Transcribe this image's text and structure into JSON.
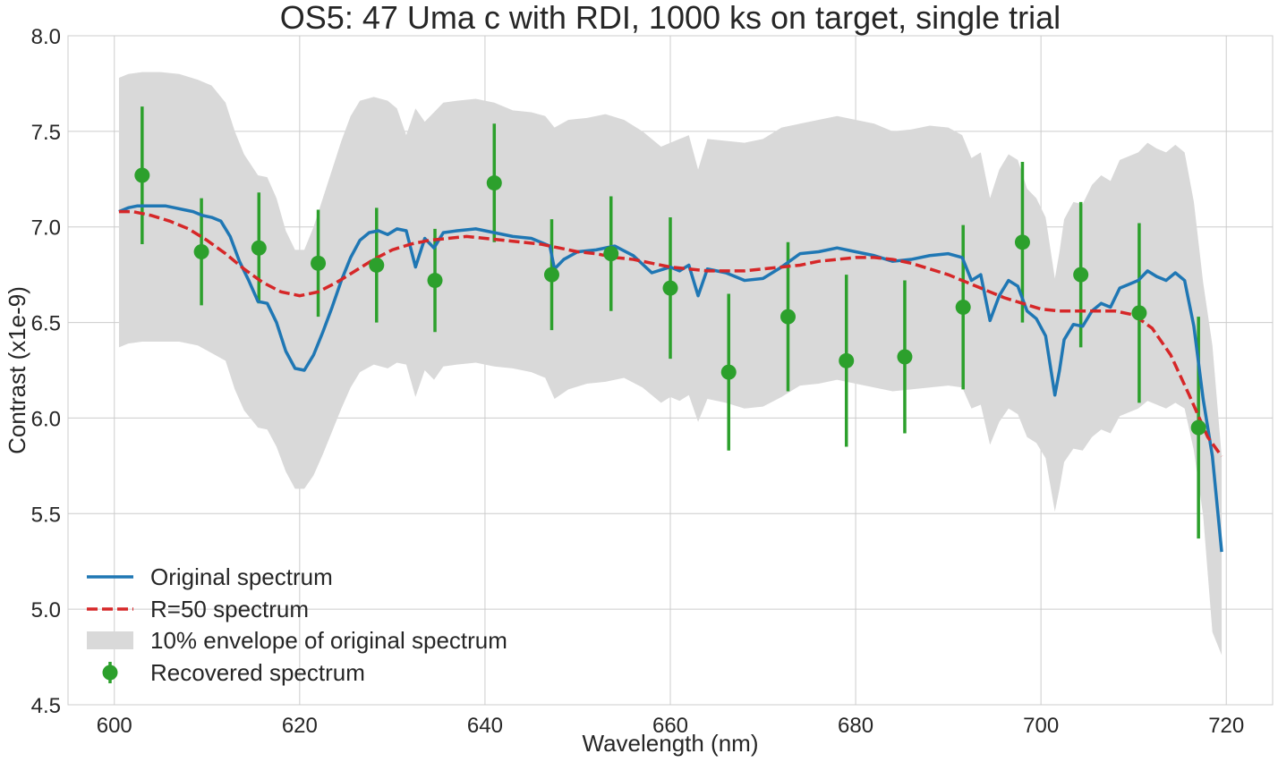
{
  "chart_data": {
    "type": "line",
    "title": "OS5: 47 Uma c with RDI, 1000 ks on target, single trial",
    "xlabel": "Wavelength (nm)",
    "ylabel": "Contrast (x1e-9)",
    "xlim": [
      595,
      725
    ],
    "ylim": [
      4.5,
      8.0
    ],
    "xticks": [
      600,
      620,
      640,
      660,
      680,
      700,
      720
    ],
    "xtick_labels": [
      "600",
      "620",
      "640",
      "660",
      "680",
      "700",
      "720"
    ],
    "yticks": [
      4.5,
      5.0,
      5.5,
      6.0,
      6.5,
      7.0,
      7.5,
      8.0
    ],
    "ytick_labels": [
      "4.5",
      "5.0",
      "5.5",
      "6.0",
      "6.5",
      "7.0",
      "7.5",
      "8.0"
    ],
    "grid": true,
    "legend_position": "lower-left",
    "colors": {
      "original": "#1f77b4",
      "r50": "#d62728",
      "envelope": "#d9d9d9",
      "recovered": "#2ca02c",
      "grid": "#cccccc",
      "text": "#262626"
    },
    "legend": [
      {
        "key": "original",
        "label": "Original spectrum",
        "style": "line"
      },
      {
        "key": "r50",
        "label": "R=50 spectrum",
        "style": "dashed"
      },
      {
        "key": "envelope",
        "label": "10% envelope of original spectrum",
        "style": "fill"
      },
      {
        "key": "recovered",
        "label": "Recovered spectrum",
        "style": "errorbar"
      }
    ],
    "series": [
      {
        "key": "original",
        "x": [
          600.5,
          601.5,
          602.5,
          603.5,
          604.5,
          605.5,
          606.5,
          607.5,
          608.5,
          609.5,
          610.5,
          611.5,
          612.5,
          613.5,
          614.5,
          615.5,
          616.5,
          617.5,
          618.5,
          619.5,
          620.5,
          621.5,
          622.5,
          623.5,
          624.5,
          625.5,
          626.5,
          627.5,
          628.5,
          629.5,
          630.5,
          631.5,
          632.5,
          633.5,
          634.5,
          635.5,
          637.0,
          639.0,
          641.0,
          643.0,
          645.0,
          647.0,
          647.5,
          648.5,
          650.0,
          652.0,
          654.0,
          656.0,
          658.0,
          660.0,
          661.0,
          662.0,
          663.0,
          664.0,
          666.0,
          668.0,
          670.0,
          672.0,
          674.0,
          676.0,
          678.0,
          680.0,
          682.0,
          684.0,
          686.0,
          688.0,
          690.0,
          691.5,
          692.5,
          693.5,
          694.5,
          695.5,
          696.5,
          697.5,
          698.5,
          699.5,
          700.5,
          701.5,
          702.0,
          702.5,
          703.5,
          704.5,
          705.5,
          706.5,
          707.5,
          708.5,
          709.5,
          710.5,
          711.5,
          712.5,
          713.5,
          714.5,
          715.5,
          716.5,
          717.5,
          718.5,
          719.5
        ],
        "y": [
          7.08,
          7.1,
          7.11,
          7.11,
          7.11,
          7.11,
          7.1,
          7.09,
          7.08,
          7.06,
          7.05,
          7.03,
          6.95,
          6.82,
          6.72,
          6.61,
          6.6,
          6.5,
          6.35,
          6.26,
          6.25,
          6.33,
          6.45,
          6.58,
          6.72,
          6.84,
          6.93,
          6.97,
          6.98,
          6.96,
          6.99,
          6.98,
          6.79,
          6.94,
          6.89,
          6.97,
          6.98,
          6.99,
          6.97,
          6.95,
          6.94,
          6.9,
          6.78,
          6.83,
          6.87,
          6.88,
          6.9,
          6.85,
          6.76,
          6.79,
          6.77,
          6.8,
          6.64,
          6.78,
          6.76,
          6.72,
          6.73,
          6.79,
          6.86,
          6.87,
          6.89,
          6.87,
          6.85,
          6.82,
          6.83,
          6.85,
          6.86,
          6.84,
          6.72,
          6.75,
          6.51,
          6.64,
          6.72,
          6.69,
          6.56,
          6.52,
          6.43,
          6.12,
          6.25,
          6.41,
          6.49,
          6.48,
          6.56,
          6.6,
          6.58,
          6.68,
          6.7,
          6.72,
          6.77,
          6.74,
          6.72,
          6.76,
          6.72,
          6.48,
          6.1,
          5.8,
          5.3
        ]
      },
      {
        "key": "r50",
        "x": [
          600.5,
          602,
          604,
          606,
          608,
          610,
          612,
          614,
          616,
          618,
          620,
          622,
          624,
          626,
          628,
          630,
          632,
          634,
          636,
          638,
          640,
          642,
          644,
          646,
          648,
          650,
          652,
          654,
          656,
          658,
          660,
          662,
          664,
          666,
          668,
          670,
          672,
          674,
          676,
          678,
          680,
          682,
          684,
          686,
          688,
          690,
          692,
          694,
          696,
          698,
          700,
          702,
          704,
          706,
          708,
          710,
          712,
          714,
          716,
          718,
          719.5
        ],
        "y": [
          7.08,
          7.08,
          7.06,
          7.03,
          6.99,
          6.93,
          6.86,
          6.78,
          6.71,
          6.66,
          6.64,
          6.66,
          6.71,
          6.77,
          6.83,
          6.88,
          6.91,
          6.93,
          6.94,
          6.95,
          6.94,
          6.93,
          6.92,
          6.91,
          6.89,
          6.87,
          6.86,
          6.84,
          6.83,
          6.81,
          6.79,
          6.78,
          6.77,
          6.77,
          6.77,
          6.78,
          6.79,
          6.8,
          6.82,
          6.83,
          6.84,
          6.84,
          6.83,
          6.81,
          6.78,
          6.75,
          6.71,
          6.67,
          6.63,
          6.6,
          6.57,
          6.56,
          6.56,
          6.56,
          6.56,
          6.54,
          6.47,
          6.33,
          6.12,
          5.9,
          5.8
        ]
      },
      {
        "key": "envelope",
        "x": [
          600.5,
          601.5,
          603.0,
          605.0,
          607.0,
          609.0,
          610.5,
          612.0,
          613.0,
          614.0,
          615.5,
          616.5,
          617.5,
          618.5,
          619.5,
          620.5,
          621.5,
          622.5,
          623.5,
          624.5,
          625.5,
          626.5,
          628.0,
          629.5,
          630.5,
          631.5,
          632.5,
          633.5,
          634.5,
          635.5,
          637.0,
          639.0,
          641.0,
          643.0,
          645.0,
          646.5,
          647.5,
          649.0,
          651.0,
          653.0,
          655.0,
          657.0,
          659.0,
          660.0,
          661.0,
          662.0,
          663.0,
          664.0,
          666.0,
          668.0,
          670.0,
          672.0,
          674.0,
          676.0,
          678.0,
          680.0,
          682.0,
          684.0,
          686.0,
          688.0,
          690.0,
          691.5,
          692.5,
          693.5,
          694.5,
          695.5,
          696.5,
          697.5,
          698.5,
          699.5,
          700.5,
          701.5,
          702.0,
          702.5,
          703.5,
          704.5,
          705.5,
          706.5,
          707.5,
          708.5,
          709.5,
          710.5,
          711.5,
          712.5,
          713.5,
          714.5,
          715.5,
          716.5,
          717.5,
          718.5,
          719.5
        ],
        "y_upper": [
          7.78,
          7.8,
          7.81,
          7.81,
          7.8,
          7.77,
          7.74,
          7.65,
          7.5,
          7.38,
          7.27,
          7.26,
          7.15,
          6.98,
          6.88,
          6.88,
          7.0,
          7.15,
          7.3,
          7.45,
          7.58,
          7.66,
          7.68,
          7.66,
          7.62,
          7.48,
          7.62,
          7.55,
          7.6,
          7.65,
          7.66,
          7.67,
          7.65,
          7.61,
          7.6,
          7.58,
          7.52,
          7.56,
          7.57,
          7.59,
          7.56,
          7.5,
          7.42,
          7.44,
          7.46,
          7.48,
          7.3,
          7.46,
          7.45,
          7.44,
          7.46,
          7.52,
          7.54,
          7.56,
          7.58,
          7.56,
          7.54,
          7.5,
          7.51,
          7.53,
          7.52,
          7.48,
          7.36,
          7.39,
          7.15,
          7.3,
          7.38,
          7.35,
          7.2,
          7.15,
          7.05,
          6.73,
          6.87,
          7.04,
          7.13,
          7.12,
          7.22,
          7.27,
          7.24,
          7.35,
          7.37,
          7.39,
          7.44,
          7.41,
          7.39,
          7.43,
          7.39,
          7.13,
          6.71,
          6.38,
          5.8
        ],
        "y_lower": [
          6.37,
          6.39,
          6.4,
          6.4,
          6.4,
          6.38,
          6.34,
          6.3,
          6.15,
          6.04,
          5.95,
          5.94,
          5.85,
          5.72,
          5.63,
          5.63,
          5.7,
          5.81,
          5.93,
          6.05,
          6.16,
          6.24,
          6.28,
          6.26,
          6.29,
          6.28,
          6.11,
          6.25,
          6.2,
          6.27,
          6.28,
          6.29,
          6.27,
          6.26,
          6.24,
          6.21,
          6.1,
          6.15,
          6.18,
          6.19,
          6.21,
          6.16,
          6.08,
          6.11,
          6.09,
          6.12,
          5.98,
          6.1,
          6.08,
          6.05,
          6.06,
          6.11,
          6.17,
          6.18,
          6.2,
          6.18,
          6.16,
          6.14,
          6.15,
          6.16,
          6.17,
          6.16,
          6.05,
          6.07,
          5.86,
          5.98,
          6.05,
          6.02,
          5.9,
          5.87,
          5.79,
          5.51,
          5.63,
          5.77,
          5.84,
          5.83,
          5.9,
          5.94,
          5.92,
          6.01,
          6.03,
          6.05,
          6.09,
          6.07,
          6.05,
          6.08,
          6.05,
          5.83,
          5.49,
          4.88,
          4.76
        ]
      },
      {
        "key": "recovered",
        "x": [
          603.0,
          609.4,
          615.6,
          622.0,
          628.3,
          634.6,
          641.0,
          647.2,
          653.6,
          660.0,
          666.3,
          672.7,
          679.0,
          685.3,
          691.6,
          698.0,
          704.3,
          710.6,
          717.0
        ],
        "y": [
          7.27,
          6.87,
          6.89,
          6.81,
          6.8,
          6.72,
          7.23,
          6.75,
          6.86,
          6.68,
          6.24,
          6.53,
          6.3,
          6.32,
          6.58,
          6.92,
          6.75,
          6.55,
          5.95
        ],
        "yerr": [
          0.36,
          0.28,
          0.29,
          0.28,
          0.3,
          0.27,
          0.31,
          0.29,
          0.3,
          0.37,
          0.41,
          0.39,
          0.45,
          0.4,
          0.43,
          0.42,
          0.38,
          0.47,
          0.58
        ]
      }
    ]
  }
}
